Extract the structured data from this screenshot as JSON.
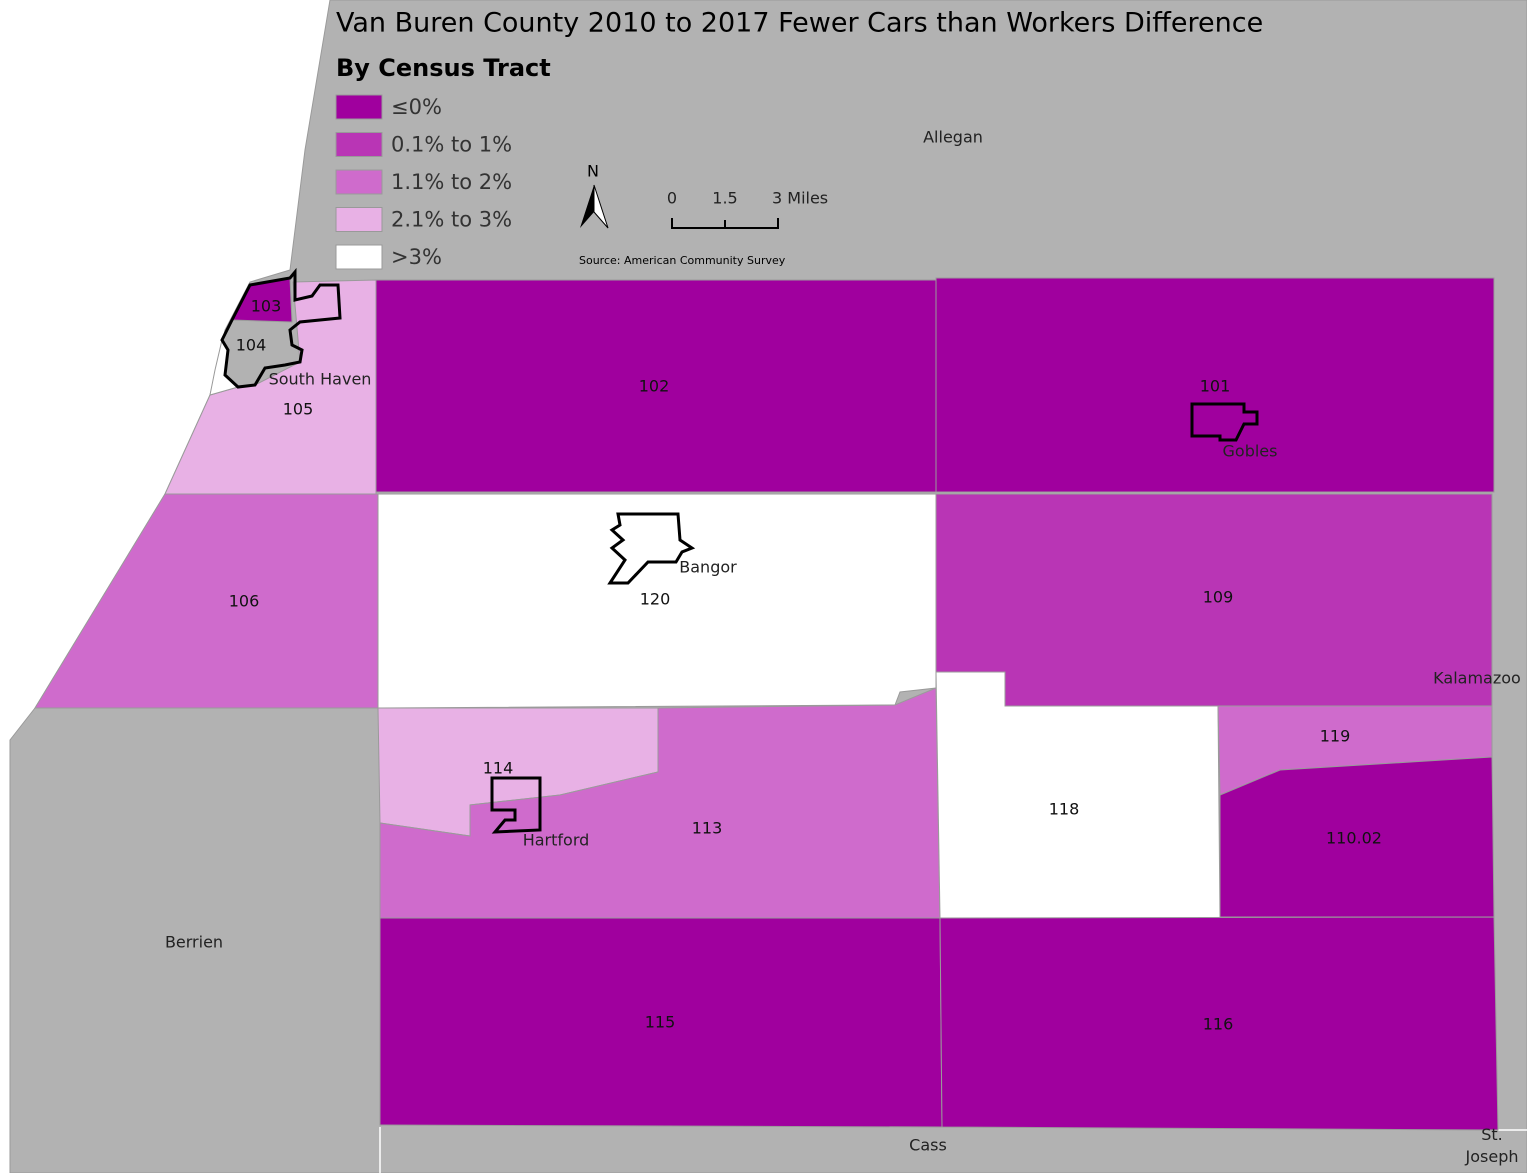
{
  "title": "Van Buren County 2010 to 2017 Fewer Cars than Workers Difference",
  "subtitle": "By Census Tract",
  "legend": [
    {
      "label": "≤0%",
      "color": "#a0009e"
    },
    {
      "label": "0.1% to 1%",
      "color": "#b935b5"
    },
    {
      "label": "1.1% to 2%",
      "color": "#cf6bcc"
    },
    {
      "label": "2.1% to 3%",
      "color": "#e8b1e5"
    },
    {
      "label": ">3%",
      "color": "#ffffff"
    }
  ],
  "tracts": [
    {
      "label": "102",
      "color": "#a0009e"
    },
    {
      "label": "101",
      "color": "#a0009e"
    },
    {
      "label": "105",
      "color": "#e8b1e5"
    },
    {
      "label": "104",
      "color": "#ffffff"
    },
    {
      "label": "103",
      "color": "#a0009e"
    },
    {
      "label": "106",
      "color": "#cf6bcc"
    },
    {
      "label": "120",
      "color": "#ffffff"
    },
    {
      "label": "109",
      "color": "#b935b5"
    },
    {
      "label": "114",
      "color": "#e8b1e5"
    },
    {
      "label": "113",
      "color": "#cf6bcc"
    },
    {
      "label": "118",
      "color": "#ffffff"
    },
    {
      "label": "119",
      "color": "#cf6bcc"
    },
    {
      "label": "110.02",
      "color": "#a0009e"
    },
    {
      "label": "115",
      "color": "#a0009e"
    },
    {
      "label": "116",
      "color": "#a0009e"
    }
  ],
  "places": [
    "South Haven",
    "Gobles",
    "Bangor",
    "Hartford"
  ],
  "counties": [
    "Allegan",
    "Kalamazoo",
    "Berrien",
    "Cass",
    "St.\nJoseph"
  ],
  "north_arrow": "N",
  "scale_bar": [
    "0",
    "1.5",
    "3 Miles"
  ],
  "source": "Source: American Community Survey"
}
